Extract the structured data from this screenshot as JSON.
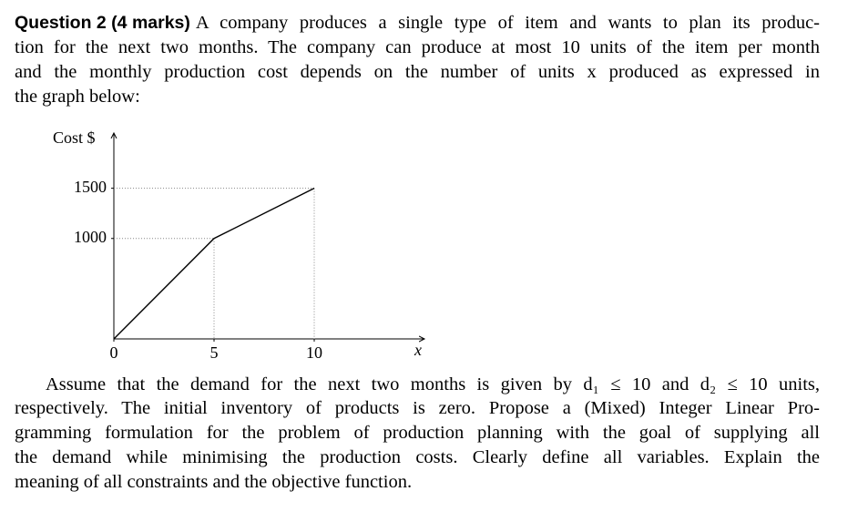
{
  "question": {
    "label": "Question 2 (4 marks)",
    "intro_lines": [
      "A company produces a single type of item and wants to plan its produc-",
      "tion for the next two months. The company can produce at most 10 units of the item per month",
      "and the monthly production cost depends on the number of units x produced as expressed in",
      "the graph below:"
    ],
    "body_lines": [
      "Assume that the demand for the next two months is given by d₁ ≤ 10 and d₂ ≤ 10 units,",
      "respectively. The initial inventory of products is zero. Propose a (Mixed) Integer Linear Pro-",
      "gramming formulation for the problem of production planning with the goal of supplying all",
      "the demand while minimising the production costs. Clearly define all variables. Explain the",
      "meaning of all constraints and the objective function."
    ]
  },
  "chart_data": {
    "type": "line",
    "y_label": "Cost $",
    "x_label": "x",
    "x": [
      0,
      5,
      10
    ],
    "values": [
      0,
      1000,
      1500
    ],
    "color": "#000000",
    "xlim": [
      0,
      15.5
    ],
    "ylim": [
      0,
      2050
    ],
    "xticks": [
      0,
      5,
      10
    ],
    "yticks": [
      1000,
      1500
    ],
    "guides": true
  }
}
